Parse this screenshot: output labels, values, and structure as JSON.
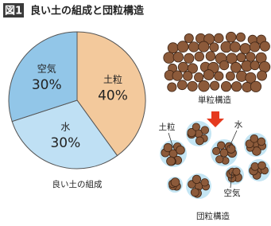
{
  "figure_label": "図1",
  "chart_data": {
    "type": "pie",
    "title": "良い土の組成と団粒構造",
    "caption": "良い土の組成",
    "categories": [
      "土粒",
      "水",
      "空気"
    ],
    "values": [
      40,
      30,
      30
    ],
    "value_labels": [
      "40%",
      "30%",
      "30%"
    ],
    "colors": [
      "#f3c99c",
      "#bfe0f4",
      "#92c6e8"
    ]
  },
  "diagram": {
    "single_structure": "単粒構造",
    "aggregate_structure": "団粒構造",
    "soil_label": "土粒",
    "water_label": "水",
    "air_label": "空気"
  }
}
